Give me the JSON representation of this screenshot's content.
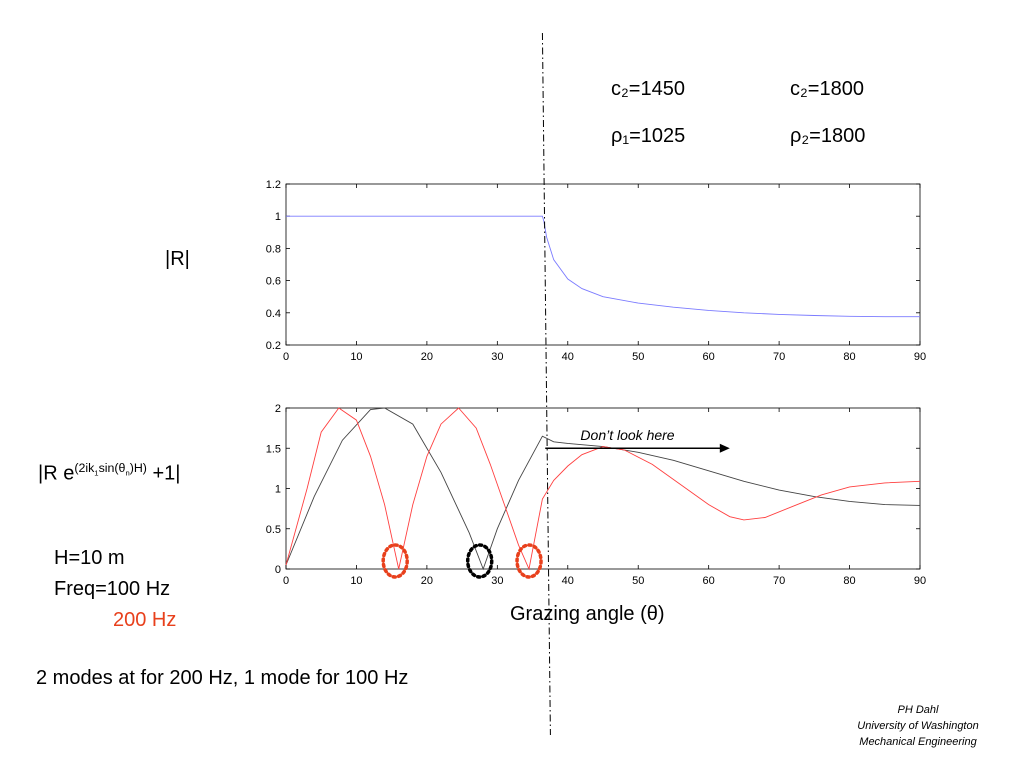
{
  "params": {
    "c1_label": "c₂=1450",
    "c2_label": "c₂=1800",
    "rho1_label": "ρ₁=1025",
    "rho2_label": "ρ₂=1800"
  },
  "labels": {
    "top_ylabel": "|R|",
    "bottom_ylabel_pre": "|R e",
    "bottom_ylabel_exp_a": "(2ik",
    "bottom_ylabel_exp_sub1": "1",
    "bottom_ylabel_exp_b": "sin(θ",
    "bottom_ylabel_exp_subn": "n",
    "bottom_ylabel_exp_c": ")H)",
    "bottom_ylabel_post": " +1|",
    "h_label": "H=10 m",
    "freq_label": "Freq=100  Hz",
    "freq2_label": "200 Hz",
    "modes_note": "2 modes at for 200 Hz, 1 mode for 100 Hz",
    "xlabel": "Grazing angle (θ)",
    "annotation": "Don’t look here"
  },
  "credit": {
    "line1": "PH Dahl",
    "line2": "University of Washington",
    "line3": "Mechanical Engineering"
  },
  "colors": {
    "blue_series": "#7b7bff",
    "red_series": "#ff4040",
    "black_series": "#444444",
    "red_circle": "#e8401c",
    "black_circle": "#000000"
  },
  "chart_data": [
    {
      "type": "line",
      "title": "",
      "xlabel": "",
      "ylabel": "|R|",
      "xlim": [
        0,
        90
      ],
      "ylim": [
        0.2,
        1.2
      ],
      "xticks": [
        0,
        10,
        20,
        30,
        40,
        50,
        60,
        70,
        80,
        90
      ],
      "yticks": [
        0.2,
        0.4,
        0.6,
        0.8,
        1,
        1.2
      ],
      "grid": false,
      "series": [
        {
          "color": "#7b7bff",
          "x": [
            0,
            10,
            20,
            30,
            36.4,
            36.6,
            37,
            38,
            40,
            42,
            45,
            50,
            55,
            60,
            65,
            70,
            75,
            80,
            85,
            90
          ],
          "y": [
            1,
            1,
            1,
            1,
            1,
            0.97,
            0.87,
            0.73,
            0.61,
            0.55,
            0.5,
            0.46,
            0.435,
            0.415,
            0.4,
            0.39,
            0.383,
            0.378,
            0.376,
            0.376
          ]
        }
      ]
    },
    {
      "type": "line",
      "title": "",
      "xlabel": "Grazing angle (θ)",
      "ylabel": "|R e^(2ik1 sin(θn)H) +1|",
      "xlim": [
        0,
        90
      ],
      "ylim": [
        0,
        2
      ],
      "xticks": [
        0,
        10,
        20,
        30,
        40,
        50,
        60,
        70,
        80,
        90
      ],
      "yticks": [
        0,
        0.5,
        1,
        1.5,
        2
      ],
      "grid": false,
      "series": [
        {
          "color": "#444444",
          "x": [
            0,
            4,
            8,
            12,
            14,
            18,
            22,
            26,
            28,
            30,
            33,
            36.4,
            38,
            40,
            45,
            50,
            55,
            60,
            65,
            70,
            75,
            80,
            85,
            90
          ],
          "y": [
            0.05,
            0.9,
            1.6,
            1.98,
            2.0,
            1.8,
            1.2,
            0.45,
            0,
            0.5,
            1.1,
            1.65,
            1.58,
            1.56,
            1.52,
            1.45,
            1.35,
            1.22,
            1.09,
            0.98,
            0.9,
            0.84,
            0.8,
            0.79
          ]
        },
        {
          "color": "#ff4040",
          "x": [
            0,
            3,
            5,
            7.5,
            10,
            12,
            14,
            16,
            18,
            20,
            22,
            24.5,
            27,
            29,
            31,
            33,
            34.5,
            36.4,
            38,
            40,
            42,
            45,
            48,
            52,
            56,
            60,
            63,
            65,
            68,
            72,
            76,
            80,
            85,
            90
          ],
          "y": [
            0.05,
            1.0,
            1.7,
            2.0,
            1.85,
            1.4,
            0.8,
            0,
            0.8,
            1.4,
            1.8,
            2.0,
            1.75,
            1.3,
            0.8,
            0.3,
            0,
            0.87,
            1.1,
            1.28,
            1.42,
            1.52,
            1.48,
            1.3,
            1.05,
            0.8,
            0.65,
            0.61,
            0.64,
            0.78,
            0.92,
            1.02,
            1.07,
            1.09
          ]
        }
      ],
      "markers": [
        {
          "shape": "dotted-circle",
          "color": "#e8401c",
          "x": 15.5,
          "y": 0.05
        },
        {
          "shape": "dotted-circle",
          "color": "#000000",
          "x": 27.5,
          "y": 0.05
        },
        {
          "shape": "dotted-circle",
          "color": "#e8401c",
          "x": 34.5,
          "y": 0.05
        }
      ],
      "annotation": {
        "text": "Don’t look here",
        "x_start": 36.8,
        "x_end": 63,
        "y": 1.55
      }
    }
  ],
  "critical_angle": 36.4
}
